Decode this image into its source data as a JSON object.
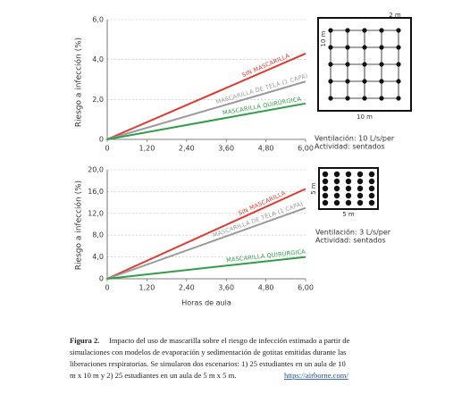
{
  "chart_data": [
    {
      "type": "line",
      "ylabel": "Riesgo a infección (%)",
      "x": [
        0,
        6
      ],
      "series": [
        {
          "name": "SIN MASCARILLA",
          "color": "#e03a2f",
          "values": [
            0,
            4.3
          ]
        },
        {
          "name": "MASCARILLA DE TELA (1 CAPA)",
          "color": "#9a9a9a",
          "values": [
            0,
            2.9
          ]
        },
        {
          "name": "MASCARILLA QUIRÚRGICA",
          "color": "#2e9e48",
          "values": [
            0,
            1.8
          ]
        }
      ],
      "xlim": [
        0,
        6
      ],
      "xticks": [
        0,
        {
          "value": 1.2,
          "label": "1,20"
        },
        {
          "value": 2.4,
          "label": "2,40"
        },
        {
          "value": 3.6,
          "label": "3,60"
        },
        {
          "value": 4.8,
          "label": "4,80"
        },
        {
          "value": 6,
          "label": "6,00"
        }
      ],
      "ylim": [
        0,
        6
      ],
      "yticks": [
        0,
        {
          "value": 2,
          "label": "2,0"
        },
        {
          "value": 4,
          "label": "4,0"
        },
        {
          "value": 6,
          "label": "6,0"
        }
      ],
      "grid": true,
      "room_labels": [
        "2 m",
        "10 m",
        "10 m"
      ],
      "annotations": [
        "Ventilación: 10 L/s/per",
        "Actividad: sentados"
      ]
    },
    {
      "type": "line",
      "ylabel": "Riesgo a infección (%)",
      "xlabel": "Horas de aula",
      "x": [
        0,
        6
      ],
      "series": [
        {
          "name": "SIN MASCARILLA",
          "color": "#e03a2f",
          "values": [
            0,
            16.5
          ]
        },
        {
          "name": "MASCARILLA DE TELA (1 CAPA)",
          "color": "#9a9a9a",
          "values": [
            0,
            13
          ]
        },
        {
          "name": "MASCARILLA QUIRÚRGICA",
          "color": "#2e9e48",
          "values": [
            0,
            4
          ]
        }
      ],
      "xlim": [
        0,
        6
      ],
      "xticks": [
        0,
        {
          "value": 1.2,
          "label": "1,20"
        },
        {
          "value": 2.4,
          "label": "2,40"
        },
        {
          "value": 3.6,
          "label": "3,60"
        },
        {
          "value": 4.8,
          "label": "4,80"
        },
        {
          "value": 6,
          "label": "6,00"
        }
      ],
      "ylim": [
        0,
        20
      ],
      "yticks": [
        0,
        {
          "value": 4,
          "label": "4,0"
        },
        {
          "value": 8,
          "label": "8,0"
        },
        {
          "value": 12,
          "label": "12,0"
        },
        {
          "value": 16,
          "label": "16,0"
        },
        {
          "value": 20,
          "label": "20,0"
        }
      ],
      "grid": true,
      "room_labels": [
        "5 m",
        "5 m"
      ],
      "annotations": [
        "Ventilación: 3 L/s/per",
        "Actividad: sentados"
      ]
    }
  ],
  "caption": {
    "label": "Figura 2.",
    "lines": [
      "Impacto del uso de mascarilla sobre el riesgo de infección estimado a partir de",
      "simulaciones con modelos de evaporación y sedimentación de gotitas emitidas durante las",
      "liberaciones respiratorias. Se simularon dos escenarios: 1) 25 estudiantes en un aula de 10",
      "m x 10 m y 2) 25 estudiantes en un aula de 5 m x 5 m."
    ],
    "link": "https://airborne.com/"
  }
}
